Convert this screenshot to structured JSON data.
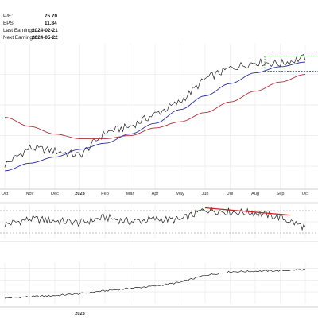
{
  "stats": [
    {
      "label": "P/E:",
      "value": "75.70"
    },
    {
      "label": "EPS:",
      "value": "11.84"
    },
    {
      "label": "Last Earnings:",
      "value": "2024-02-21"
    },
    {
      "label": "Next Earnings:",
      "value": "2024-05-22"
    }
  ],
  "colors": {
    "price": "#222222",
    "ma_short": "#2b2fa6",
    "ma_long": "#b0303a",
    "rsi": "#222222",
    "rsi_highlight": "#2e8b2e",
    "divergence": "#cc2222",
    "range_box_top": "#2e8b2e",
    "range_box_bottom": "#2233aa",
    "grid": "#e6e6e6"
  },
  "chart_data": [
    {
      "type": "line",
      "panel": "price",
      "x": [
        "2022-10",
        "2022-11",
        "2022-12",
        "2023-01",
        "2023-02",
        "2023-03",
        "2023-04",
        "2023-05",
        "2023-06",
        "2023-07",
        "2023-08",
        "2023-09",
        "2023-10"
      ],
      "tick_labels": [
        "Oct",
        "Nov",
        "Dec",
        "2023",
        "Feb",
        "Mar",
        "Apr",
        "May",
        "Jun",
        "Jul",
        "Aug",
        "Sep",
        "Oct"
      ],
      "bold_ticks": [
        "2023"
      ],
      "series": [
        {
          "values": [
            41,
            52,
            50,
            47,
            62,
            66,
            74,
            82,
            97,
            104,
            108,
            107,
            111
          ]
        },
        {
          "values": [
            37,
            42,
            46,
            51,
            55,
            61,
            68,
            77,
            86,
            94,
            101,
            105,
            108
          ]
        },
        {
          "values": [
            72,
            66,
            61,
            58,
            58,
            60,
            65,
            69,
            75,
            82,
            89,
            95,
            100
          ]
        }
      ],
      "ylim": [
        25,
        120
      ],
      "annotation_box": {
        "x_start": "2023-08",
        "x_end": "2023-10",
        "y_top": 112,
        "y_bottom": 102
      }
    },
    {
      "type": "line",
      "panel": "rsi",
      "x": [
        "2022-10",
        "2022-11",
        "2022-12",
        "2023-01",
        "2023-02",
        "2023-03",
        "2023-04",
        "2023-05",
        "2023-06",
        "2023-07",
        "2023-08",
        "2023-09",
        "2023-10"
      ],
      "tick_labels": [
        "Oct",
        "Nov",
        "Dec",
        "2023",
        "Feb",
        "Mar",
        "Apr",
        "May",
        "Jun",
        "Jul",
        "Aug",
        "Sep",
        "Oct"
      ],
      "values": [
        45,
        55,
        52,
        48,
        58,
        50,
        55,
        53,
        72,
        68,
        66,
        58,
        40
      ],
      "ylim": [
        20,
        80
      ],
      "reference_lines": [
        30,
        70
      ],
      "divergence_line": {
        "x_start": "2023-06",
        "x_end": "2023-09",
        "y_start": 75,
        "y_end": 62
      }
    },
    {
      "type": "line",
      "panel": "volume_indicator",
      "x": [
        "2022-10",
        "2022-11",
        "2022-12",
        "2023-01",
        "2023-02",
        "2023-03",
        "2023-04",
        "2023-05",
        "2023-06",
        "2023-07",
        "2023-08",
        "2023-09",
        "2023-10"
      ],
      "tick_labels": [
        "",
        "",
        "",
        "2023",
        "",
        "",
        "",
        "",
        "",
        "",
        "",
        "",
        ""
      ],
      "bold_ticks": [
        "2023"
      ],
      "values": [
        10,
        12,
        14,
        17,
        22,
        26,
        30,
        36,
        48,
        54,
        55,
        56,
        58
      ],
      "ylim": [
        0,
        70
      ]
    }
  ]
}
